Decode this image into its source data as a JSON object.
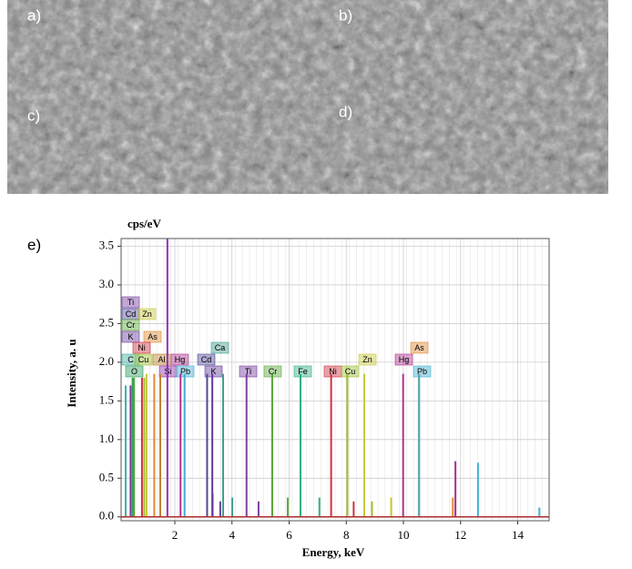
{
  "image_labels": [
    "a)",
    "b)",
    "c)",
    "d)"
  ],
  "chart_label": "e)",
  "chart_data": {
    "type": "spectrum",
    "unit_label": "cps/eV",
    "xlabel": "Energy, keV",
    "ylabel": "Intensity, a. u",
    "xlim": [
      0.12,
      15.1
    ],
    "ylim": [
      -0.05,
      3.6
    ],
    "xticks": [
      2,
      4,
      6,
      8,
      10,
      12,
      14
    ],
    "yticks": [
      {
        "value": 0,
        "label": "0.0"
      },
      0.5,
      {
        "value": 1,
        "label": "1.0"
      },
      1.5,
      {
        "value": 2,
        "label": "2.0"
      },
      2.5,
      {
        "value": 3,
        "label": "3.0"
      },
      3.5
    ],
    "grid": true,
    "series": [
      {
        "name": "Ti",
        "color": "#7b3fa0",
        "x": [
          0.45,
          4.51,
          4.93
        ],
        "values": [
          1.7,
          1.85,
          0.2
        ]
      },
      {
        "name": "Cd",
        "color": "#4f4a9b",
        "x": [
          3.13,
          3.32
        ],
        "values": [
          1.85,
          0.3
        ]
      },
      {
        "name": "Zn",
        "color": "#c8c83c",
        "x": [
          1.01,
          8.63,
          9.57
        ],
        "values": [
          1.85,
          1.85,
          0.25
        ]
      },
      {
        "name": "Cr",
        "color": "#5aa83c",
        "x": [
          0.57,
          5.41,
          5.95
        ],
        "values": [
          1.8,
          1.85,
          0.25
        ]
      },
      {
        "name": "As",
        "color": "#e08a30",
        "x": [
          1.28,
          10.54,
          11.73
        ],
        "values": [
          1.85,
          1.85,
          0.25
        ]
      },
      {
        "name": "K",
        "color": "#6a3fa0",
        "x": [
          3.31,
          3.59
        ],
        "values": [
          1.85,
          0.2
        ]
      },
      {
        "name": "Ni",
        "color": "#d03040",
        "x": [
          0.85,
          7.47,
          8.26
        ],
        "values": [
          1.8,
          1.85,
          0.2
        ]
      },
      {
        "name": "C",
        "color": "#40b0a0",
        "x": [
          0.28
        ],
        "values": [
          1.7
        ]
      },
      {
        "name": "Cu",
        "color": "#a0c030",
        "x": [
          0.93,
          8.04,
          8.9
        ],
        "values": [
          1.8,
          1.85,
          0.2
        ]
      },
      {
        "name": "Al",
        "color": "#c08030",
        "x": [
          1.49
        ],
        "values": [
          1.85
        ]
      },
      {
        "name": "Hg",
        "color": "#b03090",
        "x": [
          2.2,
          9.99,
          11.82
        ],
        "values": [
          1.85,
          1.85,
          0.72
        ]
      },
      {
        "name": "Ca",
        "color": "#40a090",
        "x": [
          3.69,
          4.01
        ],
        "values": [
          1.85,
          0.25
        ]
      },
      {
        "name": "O",
        "color": "#30a060",
        "x": [
          0.52
        ],
        "values": [
          1.8
        ]
      },
      {
        "name": "Si",
        "color": "#9030b0",
        "x": [
          1.74
        ],
        "values": [
          3.65
        ]
      },
      {
        "name": "Pb",
        "color": "#40b0d0",
        "x": [
          2.34,
          10.55,
          12.61,
          14.76
        ],
        "values": [
          1.85,
          1.85,
          0.7,
          0.12
        ]
      },
      {
        "name": "Fe",
        "color": "#30b080",
        "x": [
          6.4,
          7.06
        ],
        "values": [
          1.85,
          0.25
        ]
      }
    ]
  }
}
